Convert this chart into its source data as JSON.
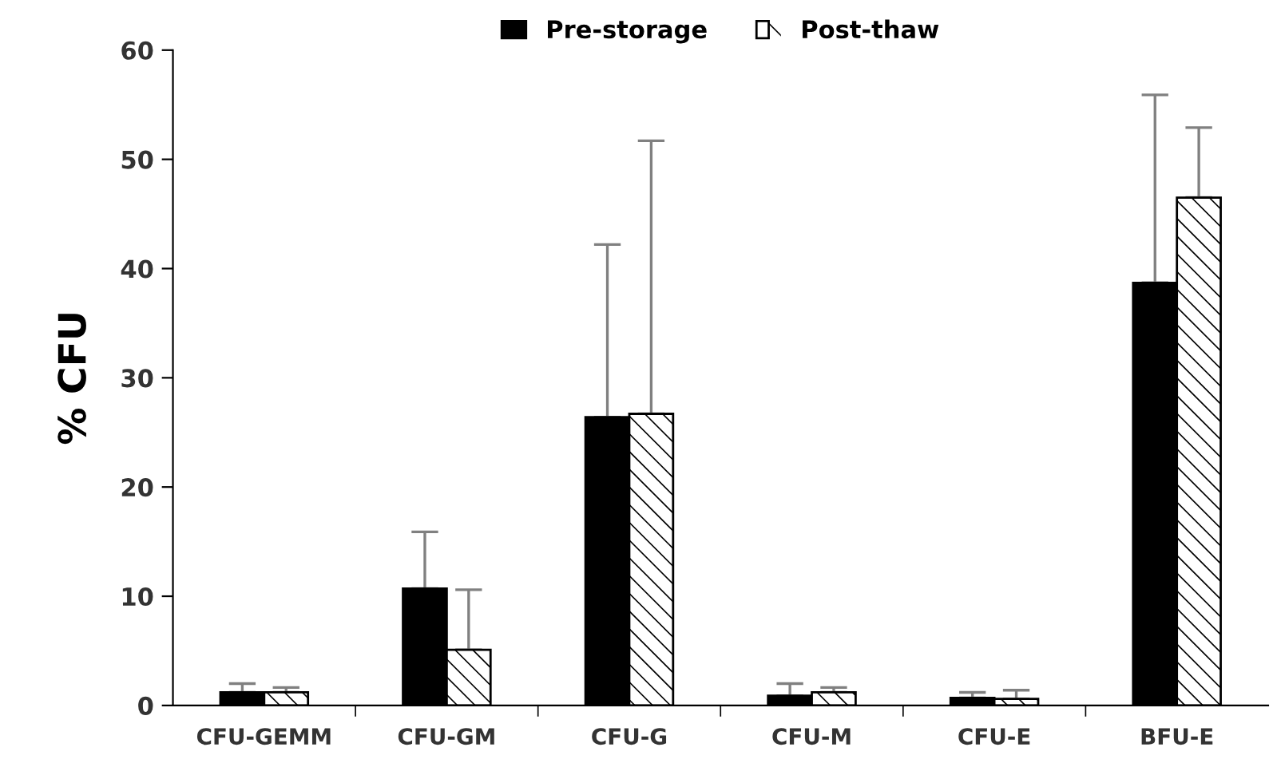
{
  "chart_data": {
    "type": "bar",
    "ylabel": "% CFU",
    "categories": [
      "CFU-GEMM",
      "CFU-GM",
      "CFU-G",
      "CFU-M",
      "CFU-E",
      "BFU-E"
    ],
    "series": [
      {
        "name": "Pre-storage",
        "color": "#000000",
        "values": [
          1.2,
          10.7,
          26.4,
          0.9,
          0.7,
          38.7
        ],
        "errors": [
          [
            1.2,
            2.0
          ],
          [
            10.7,
            15.9
          ],
          [
            26.4,
            42.2
          ],
          [
            0.9,
            2.0
          ],
          [
            0.7,
            1.2
          ],
          [
            38.7,
            55.9
          ]
        ]
      },
      {
        "name": "Post-thaw",
        "color": "#ffffff",
        "values": [
          1.2,
          5.1,
          26.7,
          1.2,
          0.6,
          46.5
        ],
        "errors": [
          [
            1.2,
            1.65
          ],
          [
            5.1,
            10.6
          ],
          [
            26.7,
            51.7
          ],
          [
            1.2,
            1.65
          ],
          [
            0.6,
            1.4
          ],
          [
            46.5,
            52.9
          ]
        ]
      }
    ],
    "ylim": [
      0,
      60
    ],
    "yticks": [
      0,
      10,
      20,
      30,
      40,
      50,
      60
    ],
    "grid": false,
    "legend": "top"
  }
}
